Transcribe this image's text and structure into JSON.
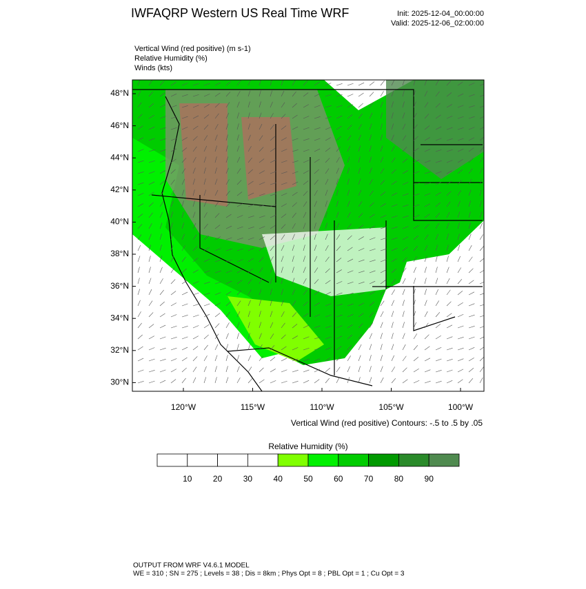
{
  "header": {
    "title": "IWFAQRP Western US Real Time WRF",
    "init": "Init: 2025-12-04_00:00:00",
    "valid": "Valid: 2025-12-06_02:00:00"
  },
  "fields": [
    "Vertical Wind (red positive)   (m s-1)",
    "Relative Humidity   (%)",
    "Winds   (kts)"
  ],
  "map": {
    "lat_labels": [
      "48°N",
      "46°N",
      "44°N",
      "42°N",
      "40°N",
      "38°N",
      "36°N",
      "34°N",
      "32°N",
      "30°N"
    ],
    "lon_labels": [
      "120°W",
      "115°W",
      "110°W",
      "105°W",
      "100°W"
    ],
    "contour_note": "Vertical Wind (red positive) Contours: -.5 to .5 by .05"
  },
  "colorbar": {
    "title": "Relative Humidity  (%)",
    "colors": [
      "#ffffff",
      "#ffffff",
      "#ffffff",
      "#ffffff",
      "#80ff00",
      "#00f000",
      "#00cc00",
      "#009900",
      "#2a8a2a",
      "#4f8a4f"
    ],
    "labels": [
      10,
      20,
      30,
      40,
      50,
      60,
      70,
      80,
      90
    ]
  },
  "footer": {
    "line1": "OUTPUT FROM WRF V4.6.1 MODEL",
    "line2": "WE = 310 ; SN = 275 ; Levels = 38 ; Dis = 8km ; Phys Opt = 8 ; PBL Opt = 1 ; Cu Opt = 3"
  }
}
